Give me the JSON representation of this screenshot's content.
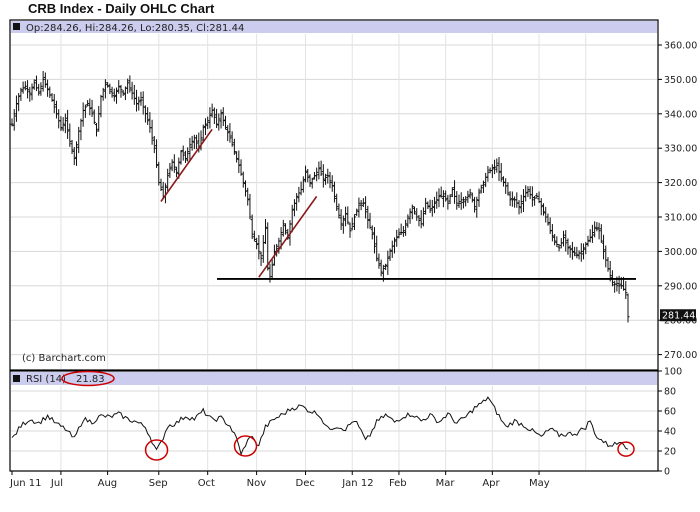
{
  "chart_data": [
    {
      "type": "ohlc",
      "title": "CRB Index - Daily OHLC Chart",
      "ohlc_label": "Op:284.26, Hi:284.26, Lo:280.35, Cl:281.44",
      "last_close": 281.44,
      "last_close_label": "281.44",
      "copyright": "(c) Barchart.com",
      "ylim": [
        265,
        365
      ],
      "yticks": [
        270,
        280,
        290,
        300,
        310,
        320,
        330,
        340,
        350,
        360
      ],
      "ytick_labels": [
        "270.00",
        "280.00",
        "290.00",
        "300.00",
        "310.00",
        "320.00",
        "330.00",
        "340.00",
        "350.00",
        "360.00"
      ],
      "x_tick_labels": [
        "Jun 11",
        "Jul",
        "Aug",
        "Sep",
        "Oct",
        "Nov",
        "Dec",
        "Jan 12",
        "Feb",
        "Mar",
        "Apr",
        "May"
      ],
      "close_path": [
        [
          0,
          337
        ],
        [
          2,
          343
        ],
        [
          4,
          347
        ],
        [
          6,
          348
        ],
        [
          8,
          346
        ],
        [
          10,
          349
        ],
        [
          12,
          346
        ],
        [
          14,
          350
        ],
        [
          16,
          347
        ],
        [
          18,
          344
        ],
        [
          20,
          340
        ],
        [
          22,
          336
        ],
        [
          24,
          338
        ],
        [
          26,
          332
        ],
        [
          28,
          327
        ],
        [
          30,
          335
        ],
        [
          32,
          341
        ],
        [
          34,
          343
        ],
        [
          36,
          340
        ],
        [
          38,
          335
        ],
        [
          40,
          345
        ],
        [
          42,
          349
        ],
        [
          44,
          347
        ],
        [
          46,
          345
        ],
        [
          48,
          348
        ],
        [
          50,
          346
        ],
        [
          52,
          349
        ],
        [
          54,
          346
        ],
        [
          56,
          343
        ],
        [
          58,
          344
        ],
        [
          60,
          340
        ],
        [
          62,
          336
        ],
        [
          64,
          330
        ],
        [
          66,
          320
        ],
        [
          68,
          316
        ],
        [
          70,
          322
        ],
        [
          72,
          326
        ],
        [
          74,
          323
        ],
        [
          76,
          329
        ],
        [
          78,
          327
        ],
        [
          80,
          331
        ],
        [
          82,
          333
        ],
        [
          84,
          330
        ],
        [
          86,
          336
        ],
        [
          88,
          338
        ],
        [
          90,
          341
        ],
        [
          92,
          337
        ],
        [
          94,
          340
        ],
        [
          96,
          336
        ],
        [
          98,
          333
        ],
        [
          100,
          329
        ],
        [
          102,
          325
        ],
        [
          104,
          320
        ],
        [
          106,
          315
        ],
        [
          107,
          310
        ],
        [
          108,
          305
        ],
        [
          110,
          302
        ],
        [
          112,
          298
        ],
        [
          114,
          307
        ],
        [
          115,
          295
        ],
        [
          116,
          292
        ],
        [
          118,
          300
        ],
        [
          120,
          303
        ],
        [
          122,
          308
        ],
        [
          124,
          304
        ],
        [
          126,
          312
        ],
        [
          128,
          316
        ],
        [
          130,
          318
        ],
        [
          132,
          323
        ],
        [
          134,
          320
        ],
        [
          136,
          322
        ],
        [
          138,
          324
        ],
        [
          140,
          321
        ],
        [
          142,
          322
        ],
        [
          144,
          319
        ],
        [
          146,
          313
        ],
        [
          148,
          308
        ],
        [
          150,
          311
        ],
        [
          152,
          306
        ],
        [
          154,
          310
        ],
        [
          156,
          314
        ],
        [
          158,
          314
        ],
        [
          160,
          309
        ],
        [
          162,
          305
        ],
        [
          164,
          298
        ],
        [
          166,
          294
        ],
        [
          168,
          296
        ],
        [
          170,
          300
        ],
        [
          172,
          303
        ],
        [
          174,
          305
        ],
        [
          176,
          306
        ],
        [
          178,
          310
        ],
        [
          180,
          313
        ],
        [
          182,
          310
        ],
        [
          184,
          308
        ],
        [
          186,
          314
        ],
        [
          188,
          312
        ],
        [
          190,
          314
        ],
        [
          192,
          316
        ],
        [
          194,
          316
        ],
        [
          196,
          314
        ],
        [
          198,
          318
        ],
        [
          200,
          314
        ],
        [
          202,
          315
        ],
        [
          204,
          315
        ],
        [
          206,
          317
        ],
        [
          208,
          313
        ],
        [
          210,
          317
        ],
        [
          212,
          320
        ],
        [
          214,
          323
        ],
        [
          216,
          324
        ],
        [
          218,
          325
        ],
        [
          220,
          321
        ],
        [
          222,
          319
        ],
        [
          224,
          315
        ],
        [
          226,
          315
        ],
        [
          228,
          313
        ],
        [
          230,
          316
        ],
        [
          232,
          318
        ],
        [
          234,
          315
        ],
        [
          236,
          316
        ],
        [
          238,
          313
        ],
        [
          240,
          310
        ],
        [
          242,
          306
        ],
        [
          244,
          303
        ],
        [
          246,
          301
        ],
        [
          248,
          304
        ],
        [
          250,
          301
        ],
        [
          252,
          300
        ],
        [
          254,
          299
        ],
        [
          256,
          300
        ],
        [
          258,
          302
        ],
        [
          260,
          304
        ],
        [
          262,
          307
        ],
        [
          264,
          306
        ],
        [
          266,
          300
        ],
        [
          268,
          295
        ],
        [
          270,
          291
        ],
        [
          272,
          290
        ],
        [
          274,
          290
        ],
        [
          276,
          288
        ],
        [
          277,
          281
        ]
      ],
      "annotations": {
        "support_level": 292,
        "support_start_day": 94,
        "support_end_day": 277,
        "trendlines": [
          {
            "start_day": 67,
            "start_value": 314.5,
            "end_day": 90,
            "end_value": 335.5
          },
          {
            "start_day": 111,
            "start_value": 292.5,
            "end_day": 137,
            "end_value": 316
          }
        ]
      }
    },
    {
      "type": "line",
      "indicator": "RSI",
      "label": "RSI (14)",
      "value_label": "21.83",
      "last_value": 21.83,
      "ylim": [
        0,
        100
      ],
      "yticks": [
        0,
        20,
        40,
        60,
        80,
        100
      ],
      "x_tick_labels": [
        "Jun 11",
        "Jul",
        "Aug",
        "Sep",
        "Oct",
        "Nov",
        "Dec",
        "Jan 12",
        "Feb",
        "Mar",
        "Apr",
        "May"
      ],
      "values": [
        [
          0,
          32
        ],
        [
          4,
          45
        ],
        [
          8,
          52
        ],
        [
          12,
          48
        ],
        [
          16,
          55
        ],
        [
          20,
          47
        ],
        [
          24,
          42
        ],
        [
          28,
          32
        ],
        [
          32,
          52
        ],
        [
          36,
          49
        ],
        [
          40,
          55
        ],
        [
          44,
          54
        ],
        [
          48,
          57
        ],
        [
          52,
          52
        ],
        [
          56,
          49
        ],
        [
          60,
          44
        ],
        [
          63,
          30
        ],
        [
          65,
          20
        ],
        [
          67,
          28
        ],
        [
          70,
          45
        ],
        [
          74,
          48
        ],
        [
          78,
          55
        ],
        [
          82,
          52
        ],
        [
          86,
          60
        ],
        [
          90,
          51
        ],
        [
          94,
          53
        ],
        [
          98,
          45
        ],
        [
          101,
          32
        ],
        [
          103,
          18
        ],
        [
          105,
          24
        ],
        [
          107,
          36
        ],
        [
          109,
          30
        ],
        [
          111,
          26
        ],
        [
          114,
          44
        ],
        [
          118,
          52
        ],
        [
          122,
          57
        ],
        [
          126,
          63
        ],
        [
          130,
          65
        ],
        [
          134,
          60
        ],
        [
          138,
          57
        ],
        [
          142,
          42
        ],
        [
          146,
          45
        ],
        [
          150,
          42
        ],
        [
          154,
          51
        ],
        [
          157,
          40
        ],
        [
          159,
          30
        ],
        [
          161,
          36
        ],
        [
          164,
          49
        ],
        [
          168,
          56
        ],
        [
          172,
          49
        ],
        [
          176,
          55
        ],
        [
          180,
          57
        ],
        [
          184,
          50
        ],
        [
          188,
          56
        ],
        [
          192,
          49
        ],
        [
          196,
          57
        ],
        [
          200,
          48
        ],
        [
          204,
          54
        ],
        [
          208,
          63
        ],
        [
          212,
          69
        ],
        [
          214,
          74
        ],
        [
          216,
          66
        ],
        [
          219,
          55
        ],
        [
          222,
          44
        ],
        [
          226,
          50
        ],
        [
          230,
          46
        ],
        [
          234,
          40
        ],
        [
          238,
          34
        ],
        [
          242,
          42
        ],
        [
          246,
          36
        ],
        [
          250,
          37
        ],
        [
          254,
          38
        ],
        [
          258,
          44
        ],
        [
          260,
          51
        ],
        [
          262,
          37
        ],
        [
          265,
          31
        ],
        [
          268,
          26
        ],
        [
          272,
          27
        ],
        [
          274,
          31
        ],
        [
          277,
          21.83
        ]
      ],
      "annotation_circles_days": [
        65,
        105,
        277
      ]
    }
  ]
}
